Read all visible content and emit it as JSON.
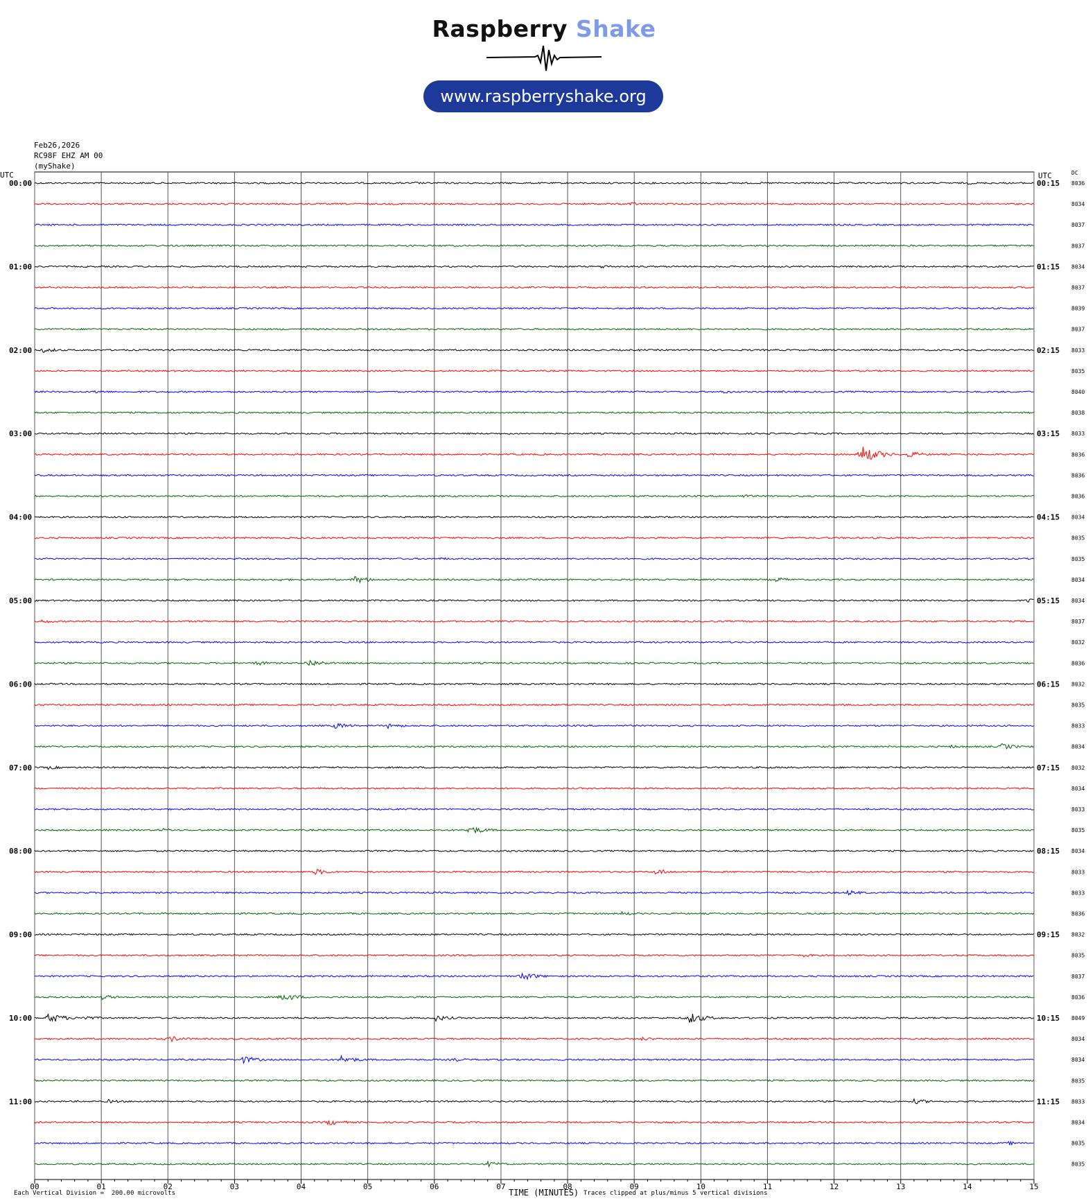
{
  "header": {
    "brand_name": "Raspberry",
    "brand_accent": "Shake",
    "url": "www.raspberryshake.org"
  },
  "meta": {
    "date": "Feb26,2026",
    "station": "RC98F EHZ AM 00",
    "network": "(myShake)"
  },
  "chart_data": {
    "type": "line",
    "title": "",
    "left_axis_label": "UTC",
    "right_axis_label": "UTC",
    "dc_label": "DC",
    "xlabel": "TIME (MINUTES)",
    "x_ticks": [
      "00",
      "01",
      "02",
      "03",
      "04",
      "05",
      "06",
      "07",
      "08",
      "09",
      "10",
      "11",
      "12",
      "13",
      "14",
      "15"
    ],
    "xlim": [
      0,
      15
    ],
    "minutes_per_row": 15,
    "row_colors": [
      "#000000",
      "#ff0000",
      "#0000ff",
      "#006400"
    ],
    "left_labels": [
      "00:00",
      "01:00",
      "02:00",
      "03:00",
      "04:00",
      "05:00",
      "06:00",
      "07:00",
      "08:00",
      "09:00",
      "10:00",
      "11:00"
    ],
    "right_labels": [
      "00:15",
      "01:15",
      "02:15",
      "03:15",
      "04:15",
      "05:15",
      "06:15",
      "07:15",
      "08:15",
      "09:15",
      "10:15",
      "11:15"
    ],
    "dc_offsets": [
      "8036",
      "8034",
      "8037",
      "8037",
      "8034",
      "8037",
      "8039",
      "8037",
      "8033",
      "8035",
      "8040",
      "8038",
      "8033",
      "8036",
      "8036",
      "8036",
      "8034",
      "8035",
      "8035",
      "8034",
      "8034",
      "8037",
      "8032",
      "8036",
      "8032",
      "8035",
      "8033",
      "8034",
      "8032",
      "8034",
      "8033",
      "8035",
      "8034",
      "8033",
      "8033",
      "8036",
      "8032",
      "8035",
      "8037",
      "8036",
      "8049",
      "8034",
      "8034",
      "8035",
      "8033",
      "8034",
      "8035",
      "8035"
    ],
    "events": [
      {
        "row": 0,
        "minute": 5.7,
        "amp": 2
      },
      {
        "row": 0,
        "minute": 14.0,
        "amp": 2
      },
      {
        "row": 1,
        "minute": 8.9,
        "amp": 3
      },
      {
        "row": 4,
        "minute": 8.5,
        "amp": 3
      },
      {
        "row": 8,
        "minute": 0.12,
        "amp": 4
      },
      {
        "row": 10,
        "minute": 0.9,
        "amp": 3
      },
      {
        "row": 10,
        "minute": 10.3,
        "amp": 3
      },
      {
        "row": 10,
        "minute": 11.2,
        "amp": 2
      },
      {
        "row": 12,
        "minute": 4.9,
        "amp": 2
      },
      {
        "row": 13,
        "minute": 12.4,
        "amp": 14
      },
      {
        "row": 13,
        "minute": 13.1,
        "amp": 5
      },
      {
        "row": 15,
        "minute": 10.6,
        "amp": 3
      },
      {
        "row": 18,
        "minute": 6.1,
        "amp": 2
      },
      {
        "row": 19,
        "minute": 3.6,
        "amp": 3
      },
      {
        "row": 19,
        "minute": 4.8,
        "amp": 6
      },
      {
        "row": 19,
        "minute": 11.1,
        "amp": 4
      },
      {
        "row": 20,
        "minute": 14.9,
        "amp": 4
      },
      {
        "row": 21,
        "minute": 0.1,
        "amp": 3
      },
      {
        "row": 21,
        "minute": 2.5,
        "amp": 2
      },
      {
        "row": 23,
        "minute": 3.3,
        "amp": 4
      },
      {
        "row": 23,
        "minute": 4.1,
        "amp": 6
      },
      {
        "row": 26,
        "minute": 4.5,
        "amp": 5
      },
      {
        "row": 26,
        "minute": 5.3,
        "amp": 4
      },
      {
        "row": 27,
        "minute": 13.7,
        "amp": 3
      },
      {
        "row": 27,
        "minute": 14.5,
        "amp": 5
      },
      {
        "row": 28,
        "minute": 0.2,
        "amp": 3
      },
      {
        "row": 31,
        "minute": 1.9,
        "amp": 3
      },
      {
        "row": 31,
        "minute": 6.5,
        "amp": 7
      },
      {
        "row": 33,
        "minute": 4.2,
        "amp": 5
      },
      {
        "row": 33,
        "minute": 9.3,
        "amp": 5
      },
      {
        "row": 34,
        "minute": 12.2,
        "amp": 4
      },
      {
        "row": 35,
        "minute": 8.8,
        "amp": 3
      },
      {
        "row": 37,
        "minute": 11.5,
        "amp": 3
      },
      {
        "row": 38,
        "minute": 7.3,
        "amp": 7
      },
      {
        "row": 39,
        "minute": 1.0,
        "amp": 4
      },
      {
        "row": 39,
        "minute": 3.7,
        "amp": 7
      },
      {
        "row": 40,
        "minute": 0.2,
        "amp": 8
      },
      {
        "row": 40,
        "minute": 0.7,
        "amp": 4
      },
      {
        "row": 40,
        "minute": 6.0,
        "amp": 5
      },
      {
        "row": 40,
        "minute": 9.8,
        "amp": 9
      },
      {
        "row": 41,
        "minute": 2.0,
        "amp": 5
      },
      {
        "row": 41,
        "minute": 9.1,
        "amp": 3
      },
      {
        "row": 42,
        "minute": 3.1,
        "amp": 6
      },
      {
        "row": 42,
        "minute": 4.6,
        "amp": 6
      },
      {
        "row": 42,
        "minute": 6.3,
        "amp": 3
      },
      {
        "row": 44,
        "minute": 1.1,
        "amp": 3
      },
      {
        "row": 44,
        "minute": 13.2,
        "amp": 4
      },
      {
        "row": 45,
        "minute": 4.4,
        "amp": 5
      },
      {
        "row": 46,
        "minute": 14.6,
        "amp": 3
      },
      {
        "row": 47,
        "minute": 6.8,
        "amp": 4
      }
    ]
  },
  "footer": {
    "division_note": "Each Vertical Division =  200.00 microvolts",
    "clip_note": "Traces clipped at plus/minus 5 vertical divisions"
  }
}
